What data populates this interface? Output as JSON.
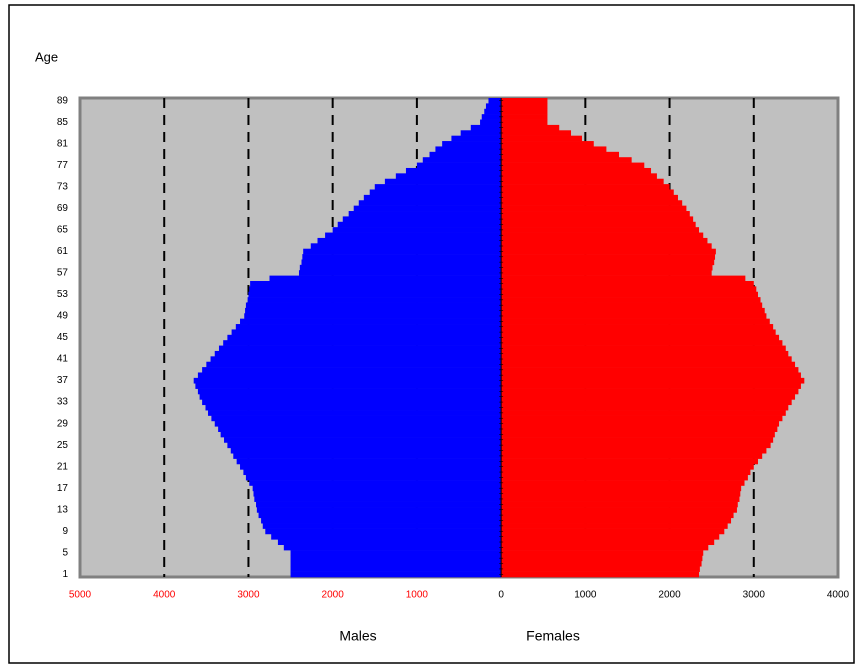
{
  "chart_data": {
    "type": "pyramid",
    "y_label": "Age",
    "categories": [
      "1",
      null,
      null,
      null,
      "5",
      null,
      null,
      null,
      "9",
      null,
      null,
      null,
      "13",
      null,
      null,
      null,
      "17",
      null,
      null,
      null,
      "21",
      null,
      null,
      null,
      "25",
      null,
      null,
      null,
      "29",
      null,
      null,
      null,
      "33",
      null,
      null,
      null,
      "37",
      null,
      null,
      null,
      "41",
      null,
      null,
      null,
      "45",
      null,
      null,
      null,
      "49",
      null,
      null,
      null,
      "53",
      null,
      null,
      null,
      "57",
      null,
      null,
      null,
      "61",
      null,
      null,
      null,
      "65",
      null,
      null,
      null,
      "69",
      null,
      null,
      null,
      "73",
      null,
      null,
      null,
      "77",
      null,
      null,
      null,
      "81",
      null,
      null,
      null,
      "85",
      null,
      null,
      null,
      "89"
    ],
    "series": [
      {
        "name": "Males",
        "color": "#0000ff",
        "side": "left",
        "values": [
          2500,
          2500,
          2500,
          2500,
          2500,
          2580,
          2650,
          2730,
          2800,
          2830,
          2850,
          2880,
          2900,
          2910,
          2930,
          2940,
          2950,
          2990,
          3030,
          3060,
          3100,
          3140,
          3180,
          3210,
          3250,
          3290,
          3330,
          3360,
          3400,
          3440,
          3480,
          3510,
          3550,
          3580,
          3600,
          3630,
          3650,
          3600,
          3550,
          3500,
          3450,
          3400,
          3350,
          3300,
          3250,
          3200,
          3150,
          3100,
          3050,
          3040,
          3030,
          3010,
          3000,
          2990,
          2980,
          2750,
          2400,
          2390,
          2370,
          2360,
          2350,
          2260,
          2180,
          2090,
          2000,
          1940,
          1880,
          1810,
          1750,
          1690,
          1630,
          1560,
          1500,
          1380,
          1250,
          1130,
          1000,
          930,
          850,
          780,
          700,
          590,
          480,
          360,
          250,
          230,
          200,
          180,
          150
        ]
      },
      {
        "name": "Females",
        "color": "#ff0000",
        "side": "right",
        "values": [
          2350,
          2360,
          2380,
          2390,
          2400,
          2460,
          2530,
          2590,
          2650,
          2690,
          2730,
          2760,
          2800,
          2810,
          2830,
          2840,
          2850,
          2890,
          2930,
          2960,
          3000,
          3050,
          3100,
          3150,
          3200,
          3230,
          3250,
          3280,
          3300,
          3340,
          3380,
          3410,
          3450,
          3490,
          3530,
          3560,
          3600,
          3560,
          3530,
          3490,
          3450,
          3410,
          3380,
          3340,
          3300,
          3260,
          3230,
          3190,
          3150,
          3130,
          3100,
          3080,
          3050,
          3030,
          3000,
          2900,
          2500,
          2510,
          2530,
          2540,
          2550,
          2500,
          2450,
          2400,
          2350,
          2310,
          2280,
          2240,
          2200,
          2150,
          2100,
          2050,
          2000,
          1930,
          1850,
          1780,
          1700,
          1550,
          1400,
          1250,
          1100,
          960,
          830,
          690,
          550,
          550,
          550,
          550,
          550
        ]
      }
    ],
    "xlim": [
      -5000,
      4000
    ],
    "xticks": [
      {
        "value": -5000,
        "label": "5000"
      },
      {
        "value": -4000,
        "label": "4000"
      },
      {
        "value": -3000,
        "label": "3000"
      },
      {
        "value": -2000,
        "label": "2000"
      },
      {
        "value": -1000,
        "label": "1000"
      },
      0,
      1000,
      2000,
      3000,
      4000
    ],
    "left_tick_color": "#ff0000",
    "right_tick_color": "#000000",
    "grid": "dashed",
    "plot_background": "#c0c0c0"
  }
}
